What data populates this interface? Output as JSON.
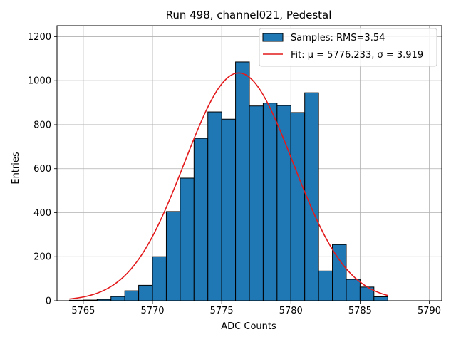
{
  "chart_data": {
    "type": "bar",
    "title": "Run 498, channel021, Pedestal",
    "xlabel": "ADC Counts",
    "ylabel": "Entries",
    "xlim": [
      5763.1,
      5790.9
    ],
    "ylim": [
      0,
      1250
    ],
    "grid": true,
    "legend_position": "top-right",
    "xticks": [
      5765,
      5770,
      5775,
      5780,
      5785,
      5790
    ],
    "yticks": [
      0,
      200,
      400,
      600,
      800,
      1000,
      1200
    ],
    "histogram": {
      "name": "Samples: RMS=3.54",
      "color": "#1f77b4",
      "edgecolor": "#000000",
      "bin_edges": [
        5764,
        5765,
        5766,
        5767,
        5768,
        5769,
        5770,
        5771,
        5772,
        5773,
        5774,
        5775,
        5776,
        5777,
        5778,
        5779,
        5780,
        5781,
        5782,
        5783,
        5784,
        5785,
        5786,
        5787
      ],
      "values": [
        2,
        3,
        6,
        19,
        45,
        70,
        200,
        405,
        557,
        738,
        858,
        825,
        1085,
        885,
        898,
        887,
        855,
        945,
        135,
        255,
        97,
        62,
        18,
        7
      ]
    },
    "fit": {
      "name": "Fit: $\\mu$ = 5776.233, $\\sigma$ = 3.919",
      "display_name": "Fit: μ = 5776.233, σ = 3.919",
      "color": "#e31a1c",
      "mu": 5776.233,
      "sigma": 3.919,
      "amplitude": 1035,
      "x_range": [
        5764,
        5787
      ]
    }
  }
}
